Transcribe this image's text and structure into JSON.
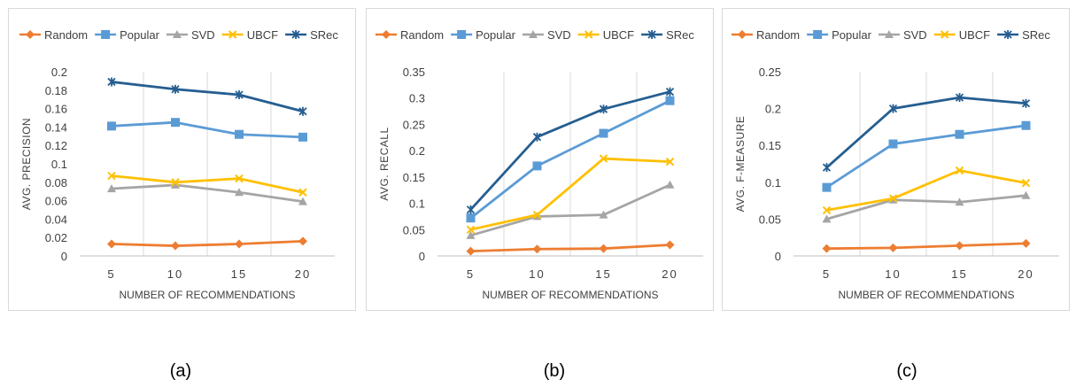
{
  "panels": [
    {
      "caption": "(a)"
    },
    {
      "caption": "(b)"
    },
    {
      "caption": "(c)"
    }
  ],
  "colors": {
    "Random": "#ed7d31",
    "Popular": "#5b9bd5",
    "SVD": "#a5a5a5",
    "UBCF": "#ffc000",
    "SRec": "#255e91"
  },
  "markers": {
    "Random": "diamond",
    "Popular": "square",
    "SVD": "triangle",
    "UBCF": "x",
    "SRec": "star"
  },
  "chart_data": [
    {
      "type": "line",
      "categories": [
        "5",
        "10",
        "15",
        "20"
      ],
      "xlabel": "NUMBER OF RECOMMENDATIONS",
      "ylabel": "AVG. PRECISION",
      "ylim": [
        0,
        0.2
      ],
      "yticks": [
        "0",
        "0.02",
        "0.04",
        "0.06",
        "0.08",
        "0.1",
        "0.12",
        "0.14",
        "0.16",
        "0.18",
        "0.2"
      ],
      "grid": "vertical",
      "legend": "top",
      "series": [
        {
          "name": "Random",
          "values": [
            0.013,
            0.011,
            0.013,
            0.016
          ]
        },
        {
          "name": "Popular",
          "values": [
            0.141,
            0.145,
            0.132,
            0.129
          ]
        },
        {
          "name": "SVD",
          "values": [
            0.073,
            0.077,
            0.069,
            0.059
          ]
        },
        {
          "name": "UBCF",
          "values": [
            0.087,
            0.08,
            0.084,
            0.069
          ]
        },
        {
          "name": "SRec",
          "values": [
            0.189,
            0.181,
            0.175,
            0.157
          ]
        }
      ]
    },
    {
      "type": "line",
      "categories": [
        "5",
        "10",
        "15",
        "20"
      ],
      "xlabel": "NUMBER OF RECOMMENDATIONS",
      "ylabel": "AVG. RECALL",
      "ylim": [
        0,
        0.35
      ],
      "yticks": [
        "0",
        "0.05",
        "0.1",
        "0.15",
        "0.2",
        "0.25",
        "0.3",
        "0.35"
      ],
      "grid": "vertical",
      "legend": "top",
      "series": [
        {
          "name": "Random",
          "values": [
            0.009,
            0.013,
            0.014,
            0.021
          ]
        },
        {
          "name": "Popular",
          "values": [
            0.072,
            0.171,
            0.233,
            0.295
          ]
        },
        {
          "name": "SVD",
          "values": [
            0.039,
            0.075,
            0.078,
            0.135
          ]
        },
        {
          "name": "UBCF",
          "values": [
            0.05,
            0.078,
            0.185,
            0.179
          ]
        },
        {
          "name": "SRec",
          "values": [
            0.088,
            0.226,
            0.279,
            0.312
          ]
        }
      ]
    },
    {
      "type": "line",
      "categories": [
        "5",
        "10",
        "15",
        "20"
      ],
      "xlabel": "NUMBER OF RECOMMENDATIONS",
      "ylabel": "AVG. F-MEASURE",
      "ylim": [
        0,
        0.25
      ],
      "yticks": [
        "0",
        "0.05",
        "0.1",
        "0.15",
        "0.2",
        "0.25"
      ],
      "grid": "vertical",
      "legend": "top",
      "series": [
        {
          "name": "Random",
          "values": [
            0.01,
            0.011,
            0.014,
            0.017
          ]
        },
        {
          "name": "Popular",
          "values": [
            0.093,
            0.152,
            0.165,
            0.177
          ]
        },
        {
          "name": "SVD",
          "values": [
            0.05,
            0.076,
            0.073,
            0.082
          ]
        },
        {
          "name": "UBCF",
          "values": [
            0.062,
            0.078,
            0.116,
            0.099
          ]
        },
        {
          "name": "SRec",
          "values": [
            0.12,
            0.2,
            0.215,
            0.207
          ]
        }
      ]
    }
  ]
}
